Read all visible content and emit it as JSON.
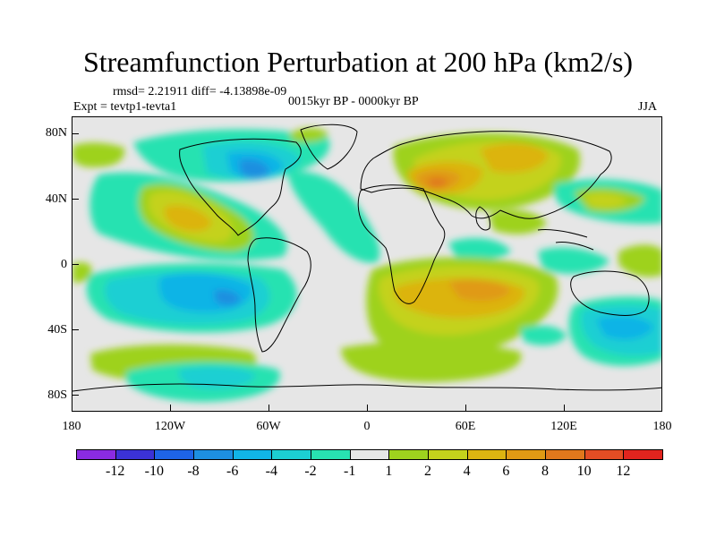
{
  "title": "Streamfunction Perturbation at 200 hPa (km2/s)",
  "stats": "rmsd= 2.21911 diff= -4.13898e-09",
  "experiment": "Expt = tevtp1-tevta1",
  "period": "0015kyr BP - 0000kyr BP",
  "season": "JJA",
  "y_axis": {
    "ticks": [
      "80N",
      "40N",
      "0",
      "40S",
      "80S"
    ]
  },
  "x_axis": {
    "ticks": [
      "180",
      "120W",
      "60W",
      "0",
      "60E",
      "120E",
      "180"
    ]
  },
  "colorbar": {
    "colors": [
      "#8a2be2",
      "#3b32d6",
      "#1e64e6",
      "#1d8fe0",
      "#11b4e6",
      "#1ccfd3",
      "#28e2b1",
      "#e6e6e6",
      "#9ed21e",
      "#c4d21c",
      "#dcb411",
      "#e09a14",
      "#e0781c",
      "#e34d24",
      "#e0241e"
    ],
    "labels": [
      "-12",
      "-10",
      "-8",
      "-6",
      "-4",
      "-2",
      "-1",
      "1",
      "2",
      "4",
      "6",
      "8",
      "10",
      "12"
    ]
  },
  "colors": {
    "background": "#e6e6e6",
    "neg1": "#28e2b1",
    "neg2": "#1ccfd3",
    "neg4": "#11b4e6",
    "neg6": "#1d8fe0",
    "neg8": "#1e64e6",
    "pos1": "#9ed21e",
    "pos2": "#c4d21c",
    "pos4": "#dcb411",
    "pos6": "#e09a14",
    "pos8": "#e0781c",
    "pos10": "#e34d24"
  }
}
